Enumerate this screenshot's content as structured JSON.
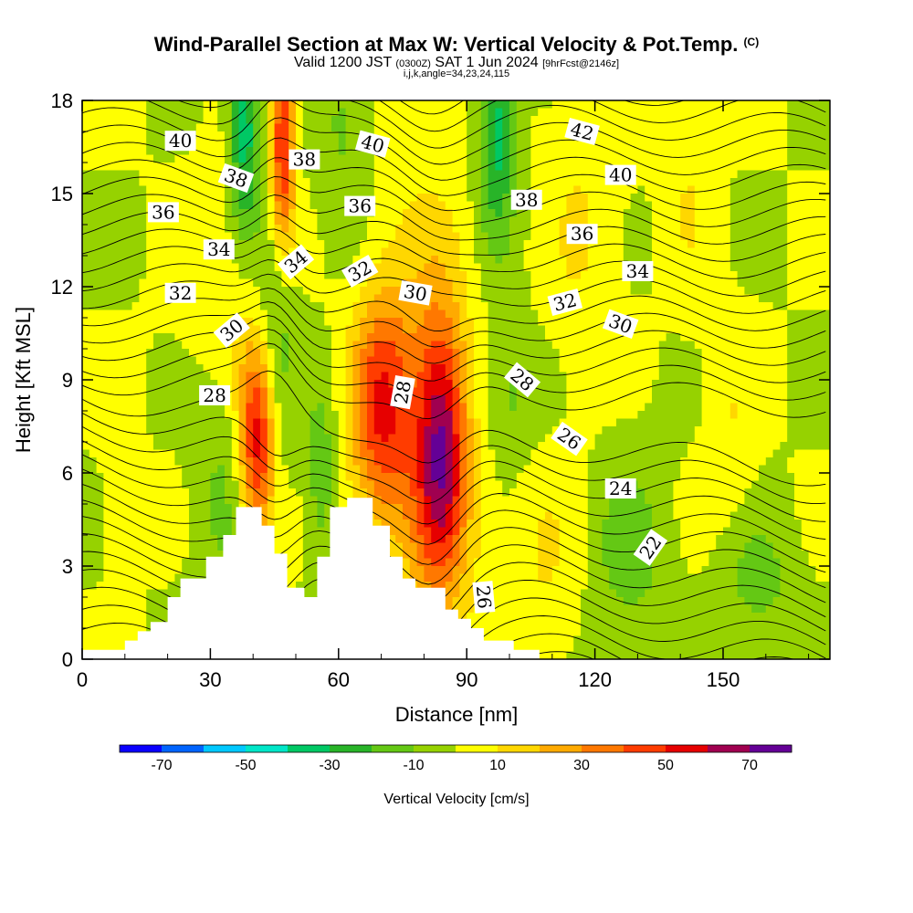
{
  "title": {
    "main": "Wind-Parallel Section at Max W: Vertical Velocity & Pot.Temp.",
    "mark": "(C)",
    "valid_prefix": "Valid 1200 JST",
    "zulu": "(0300Z)",
    "valid_date": "SAT 1 Jun 2024",
    "forecast": "[9hrFcst@2146z]",
    "grid": "i,j,k,angle=34,23,24,115"
  },
  "chart_data": {
    "type": "heatmap",
    "xlabel": "Distance [nm]",
    "ylabel": "Height [Kft MSL]",
    "xlim": [
      0,
      175
    ],
    "ylim": [
      0,
      18
    ],
    "x_ticks": [
      0,
      30,
      60,
      90,
      120,
      150
    ],
    "y_ticks": [
      0,
      3,
      6,
      9,
      12,
      15,
      18
    ],
    "colorbar": {
      "label": "Vertical Velocity [cm/s]",
      "tick_labels": [
        -70,
        -50,
        -30,
        -10,
        10,
        30,
        50,
        70
      ],
      "bins": [
        -80,
        -70,
        -60,
        -50,
        -40,
        -30,
        -20,
        -10,
        0,
        10,
        20,
        30,
        40,
        50,
        60,
        70,
        80
      ],
      "colors": [
        "#0a00ff",
        "#0064ff",
        "#00c8ff",
        "#00e6c8",
        "#00c864",
        "#28b428",
        "#64c814",
        "#96d200",
        "#ffff00",
        "#ffd700",
        "#ffaa00",
        "#ff7800",
        "#ff3c00",
        "#e60000",
        "#a00050",
        "#640096"
      ]
    },
    "terrain": [
      [
        0,
        0.3
      ],
      [
        10,
        0.3
      ],
      [
        10,
        0.6
      ],
      [
        13,
        0.6
      ],
      [
        13,
        0.9
      ],
      [
        16,
        0.9
      ],
      [
        16,
        1.2
      ],
      [
        20,
        1.2
      ],
      [
        20,
        2.0
      ],
      [
        23,
        2.0
      ],
      [
        23,
        2.6
      ],
      [
        29,
        2.6
      ],
      [
        29,
        3.3
      ],
      [
        33,
        3.3
      ],
      [
        33,
        4.0
      ],
      [
        36,
        4.0
      ],
      [
        36,
        4.9
      ],
      [
        42,
        4.9
      ],
      [
        42,
        4.3
      ],
      [
        45,
        4.3
      ],
      [
        45,
        3.4
      ],
      [
        48,
        3.4
      ],
      [
        48,
        2.3
      ],
      [
        52,
        2.3
      ],
      [
        52,
        2.0
      ],
      [
        55,
        2.0
      ],
      [
        55,
        3.3
      ],
      [
        58,
        3.3
      ],
      [
        58,
        4.9
      ],
      [
        62,
        4.9
      ],
      [
        62,
        5.2
      ],
      [
        68,
        5.2
      ],
      [
        68,
        4.3
      ],
      [
        72,
        4.3
      ],
      [
        72,
        3.3
      ],
      [
        75,
        3.3
      ],
      [
        75,
        2.6
      ],
      [
        78,
        2.6
      ],
      [
        78,
        2.3
      ],
      [
        85,
        2.3
      ],
      [
        85,
        1.6
      ],
      [
        88,
        1.6
      ],
      [
        88,
        1.3
      ],
      [
        91,
        1.3
      ],
      [
        91,
        1.0
      ],
      [
        94,
        1.0
      ],
      [
        94,
        0.6
      ],
      [
        101,
        0.6
      ],
      [
        101,
        0.3
      ],
      [
        107,
        0.3
      ],
      [
        107,
        0
      ]
    ],
    "w_field": [
      {
        "x": 41,
        "y": 7.0,
        "sx": 3,
        "sy": 2.3,
        "w": 58
      },
      {
        "x": 47,
        "y": 16.5,
        "sx": 2,
        "sy": 2.4,
        "w": 52
      },
      {
        "x": 70,
        "y": 8.0,
        "sx": 5,
        "sy": 2.6,
        "w": 42
      },
      {
        "x": 84,
        "y": 7.0,
        "sx": 4,
        "sy": 3.0,
        "w": 52
      },
      {
        "x": 78,
        "y": 9.5,
        "sx": 9,
        "sy": 5,
        "w": 14
      },
      {
        "x": 84,
        "y": 4.5,
        "sx": 7,
        "sy": 3,
        "w": 15
      },
      {
        "x": 38,
        "y": 17,
        "sx": 2.5,
        "sy": 2.5,
        "w": -38
      },
      {
        "x": 45,
        "y": 10.5,
        "sx": 3.5,
        "sy": 3,
        "w": -20
      },
      {
        "x": 56,
        "y": 6.0,
        "sx": 2.5,
        "sy": 2,
        "w": -18
      },
      {
        "x": 97,
        "y": 17,
        "sx": 3,
        "sy": 2.5,
        "w": -35
      },
      {
        "x": 62,
        "y": 17,
        "sx": 5,
        "sy": 3,
        "w": -12
      },
      {
        "x": 100,
        "y": 8.5,
        "sx": 5,
        "sy": 1.6,
        "w": -14
      },
      {
        "x": 128,
        "y": 3.5,
        "sx": 6,
        "sy": 2.2,
        "w": -15
      },
      {
        "x": 158,
        "y": 2.5,
        "sx": 6,
        "sy": 1.5,
        "w": -14
      },
      {
        "x": 33,
        "y": 5.5,
        "sx": 5,
        "sy": 3,
        "w": -12
      },
      {
        "x": 117,
        "y": 14,
        "sx": 6,
        "sy": 3.5,
        "w": 10
      },
      {
        "x": 142,
        "y": 15,
        "sx": 4,
        "sy": 2.5,
        "w": 9
      },
      {
        "x": 35,
        "y": 12,
        "sx": 8,
        "sy": 3,
        "w": 9
      },
      {
        "x": 152,
        "y": 7.5,
        "sx": 4,
        "sy": 2.5,
        "w": 9
      },
      {
        "x": 108,
        "y": 3.0,
        "sx": 6,
        "sy": 2.5,
        "w": 10
      },
      {
        "x": 9,
        "y": 5.0,
        "sx": 2.5,
        "sy": 1.5,
        "w": 9
      }
    ],
    "theta_labels": [
      {
        "text": "40",
        "x": 23,
        "y": 16.7,
        "angle": 0
      },
      {
        "text": "38",
        "x": 36,
        "y": 15.5,
        "angle": 20
      },
      {
        "text": "38",
        "x": 52,
        "y": 16.1,
        "angle": 0
      },
      {
        "text": "40",
        "x": 68,
        "y": 16.6,
        "angle": 15
      },
      {
        "text": "42",
        "x": 117,
        "y": 17.0,
        "angle": 15
      },
      {
        "text": "40",
        "x": 126,
        "y": 15.6,
        "angle": 0
      },
      {
        "text": "38",
        "x": 104,
        "y": 14.8,
        "angle": 0
      },
      {
        "text": "36",
        "x": 19,
        "y": 14.4,
        "angle": 0
      },
      {
        "text": "36",
        "x": 65,
        "y": 14.6,
        "angle": 0
      },
      {
        "text": "36",
        "x": 117,
        "y": 13.7,
        "angle": 0
      },
      {
        "text": "34",
        "x": 32,
        "y": 13.2,
        "angle": 0
      },
      {
        "text": "34",
        "x": 50,
        "y": 12.8,
        "angle": -40
      },
      {
        "text": "34",
        "x": 130,
        "y": 12.5,
        "angle": 0
      },
      {
        "text": "32",
        "x": 23,
        "y": 11.8,
        "angle": 0
      },
      {
        "text": "32",
        "x": 65,
        "y": 12.5,
        "angle": -30
      },
      {
        "text": "32",
        "x": 113,
        "y": 11.5,
        "angle": -15
      },
      {
        "text": "30",
        "x": 35,
        "y": 10.6,
        "angle": -40
      },
      {
        "text": "30",
        "x": 78,
        "y": 11.8,
        "angle": 10
      },
      {
        "text": "30",
        "x": 126,
        "y": 10.8,
        "angle": 20
      },
      {
        "text": "28",
        "x": 31,
        "y": 8.5,
        "angle": 0
      },
      {
        "text": "28",
        "x": 75,
        "y": 8.6,
        "angle": -80
      },
      {
        "text": "28",
        "x": 103,
        "y": 9.0,
        "angle": 40
      },
      {
        "text": "26",
        "x": 114,
        "y": 7.1,
        "angle": 35
      },
      {
        "text": "26",
        "x": 94,
        "y": 2.0,
        "angle": 85
      },
      {
        "text": "24",
        "x": 126,
        "y": 5.5,
        "angle": 0
      },
      {
        "text": "22",
        "x": 133,
        "y": 3.6,
        "angle": -55
      }
    ]
  }
}
